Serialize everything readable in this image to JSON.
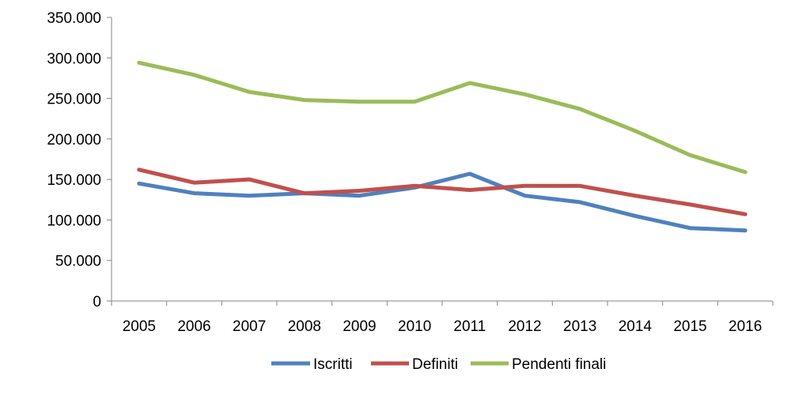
{
  "chart_data": {
    "type": "line",
    "title": "",
    "xlabel": "",
    "ylabel": "",
    "categories": [
      "2005",
      "2006",
      "2007",
      "2008",
      "2009",
      "2010",
      "2011",
      "2012",
      "2013",
      "2014",
      "2015",
      "2016"
    ],
    "ylim": [
      0,
      350000
    ],
    "yticks": [
      0,
      50000,
      100000,
      150000,
      200000,
      250000,
      300000,
      350000
    ],
    "ytick_labels": [
      "0",
      "50.000",
      "100.000",
      "150.000",
      "200.000",
      "250.000",
      "300.000",
      "350.000"
    ],
    "grid": false,
    "legend_position": "bottom",
    "series": [
      {
        "name": "Iscritti",
        "color": "#4F81BD",
        "values": [
          145000,
          133000,
          130000,
          133000,
          130000,
          140000,
          157000,
          130000,
          122000,
          105000,
          90000,
          87000
        ]
      },
      {
        "name": "Definiti",
        "color": "#C0504D",
        "values": [
          162000,
          146000,
          150000,
          133000,
          136000,
          142000,
          137000,
          142000,
          142000,
          130000,
          119000,
          107000
        ]
      },
      {
        "name": "Pendenti finali",
        "color": "#9BBB59",
        "values": [
          294000,
          279000,
          258000,
          248000,
          246000,
          246000,
          269000,
          255000,
          237000,
          210000,
          180000,
          159000
        ]
      }
    ]
  }
}
